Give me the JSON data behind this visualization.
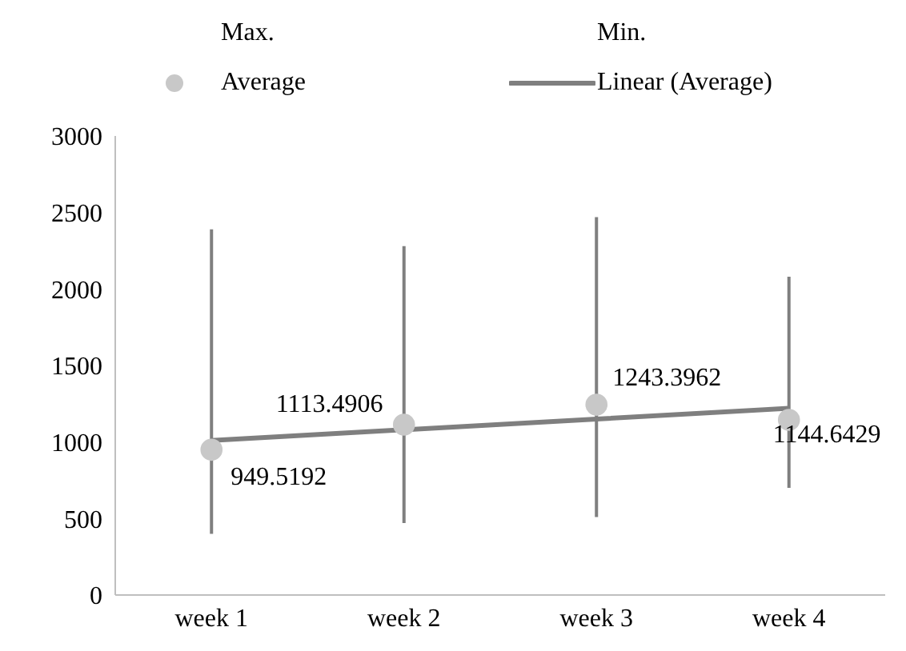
{
  "chart_data": {
    "type": "scatter",
    "categories": [
      "week 1",
      "week 2",
      "week 3",
      "week 4"
    ],
    "ylim": [
      0,
      3000
    ],
    "yticks": [
      0,
      500,
      1000,
      1500,
      2000,
      2500,
      3000
    ],
    "legend": "top",
    "annotations": [
      "Max.",
      "Min."
    ],
    "series": [
      {
        "name": "Average",
        "marker": "circle",
        "color": "#c8c8c8",
        "values": [
          949.5192,
          1113.4906,
          1243.3962,
          1144.6429
        ],
        "errors": [
          [
            400,
            2390
          ],
          [
            470,
            2280
          ],
          [
            510,
            2470
          ],
          [
            700,
            2080
          ]
        ],
        "value_labels": [
          "949.5192",
          "1113.4906",
          "1243.3962",
          "1144.6429"
        ]
      },
      {
        "name": "Linear (Average)",
        "type": "line",
        "marker": "none",
        "line_style": "solid",
        "color": "#7f7f7f",
        "values": [
          1010,
          1080,
          1150,
          1220
        ]
      }
    ]
  }
}
